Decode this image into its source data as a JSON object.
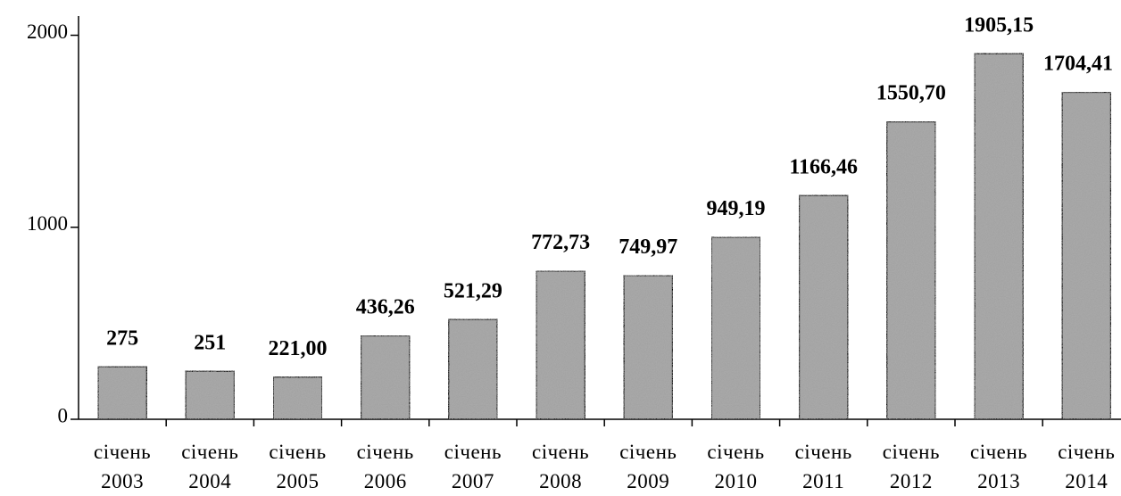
{
  "chart_data": {
    "type": "bar",
    "categories": [
      "січень 2003",
      "січень 2004",
      "січень 2005",
      "січень 2006",
      "січень 2007",
      "січень 2008",
      "січень 2009",
      "січень 2010",
      "січень 2011",
      "січень 2012",
      "січень 2013",
      "січень 2014"
    ],
    "values": [
      275,
      251,
      221,
      436.26,
      521.29,
      772.73,
      749.97,
      949.19,
      1166.46,
      1550.7,
      1905.15,
      1704.41
    ],
    "value_labels": [
      "275",
      "251",
      "221,00",
      "436,26",
      "521,29",
      "772,73",
      "749,97",
      "949,19",
      "1166,46",
      "1550,70",
      "1905,15",
      "1704,41"
    ],
    "color": "#a9a9a9",
    "ylim": [
      0,
      2100
    ],
    "yticks": [
      0,
      1000,
      2000
    ],
    "grid": false
  }
}
